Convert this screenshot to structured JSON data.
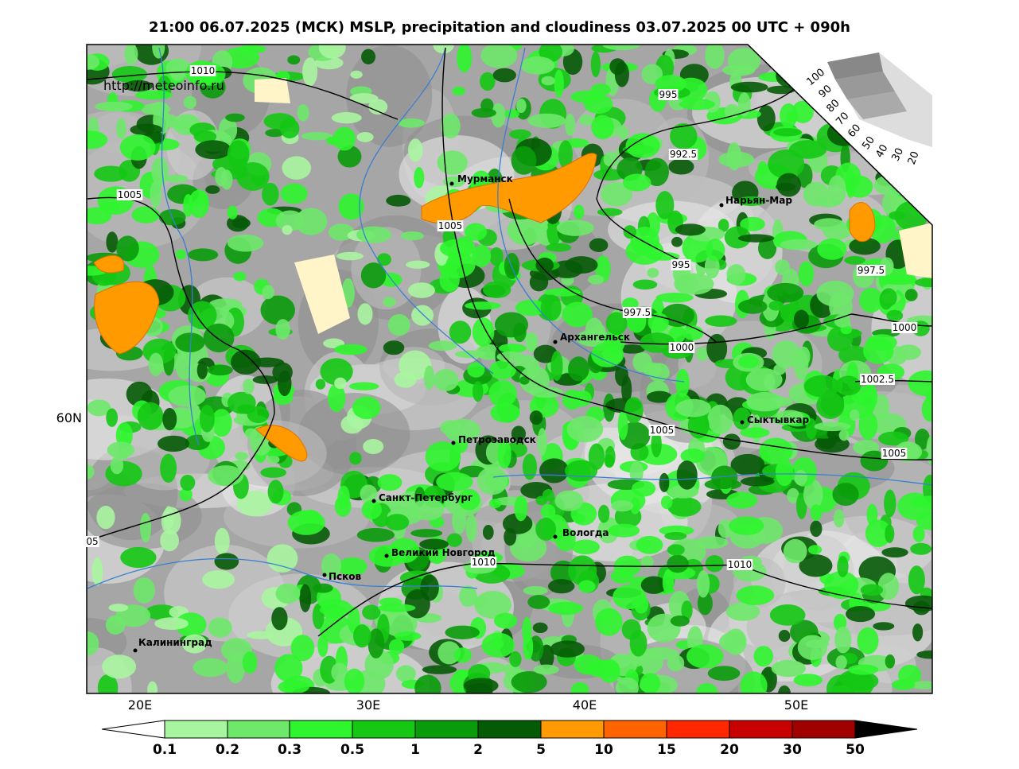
{
  "header": {
    "title": "21:00 06.07.2025 (МСК) MSLP, precipitation and cloudiness 03.07.2025 00 UTC + 090h"
  },
  "map": {
    "url": "http://meteoinfo.ru",
    "cities": [
      "Мурманск",
      "Нарьян-Мар",
      "Архангельск",
      "Сыктывкар",
      "Петрозаводск",
      "Санкт-Петербург",
      "Вологда",
      "Великий Новгород",
      "Псков",
      "Калининград"
    ],
    "isobar_labels": [
      "1010",
      "995",
      "992.5",
      "1005",
      "1005",
      "995",
      "997.5",
      "997.5",
      "1000",
      "1000",
      "1002.5",
      "1005",
      "1005",
      "05",
      "1010",
      "1010"
    ],
    "lon_labels": [
      "20E",
      "30E",
      "40E",
      "50E"
    ],
    "lat_labels": [
      "60N"
    ],
    "inset_labels": [
      "100",
      "90",
      "80",
      "70",
      "60",
      "50",
      "40",
      "30",
      "20"
    ]
  },
  "legend": {
    "labels": [
      "0.1",
      "0.2",
      "0.3",
      "0.5",
      "1",
      "2",
      "5",
      "10",
      "15",
      "20",
      "30",
      "50"
    ]
  }
}
